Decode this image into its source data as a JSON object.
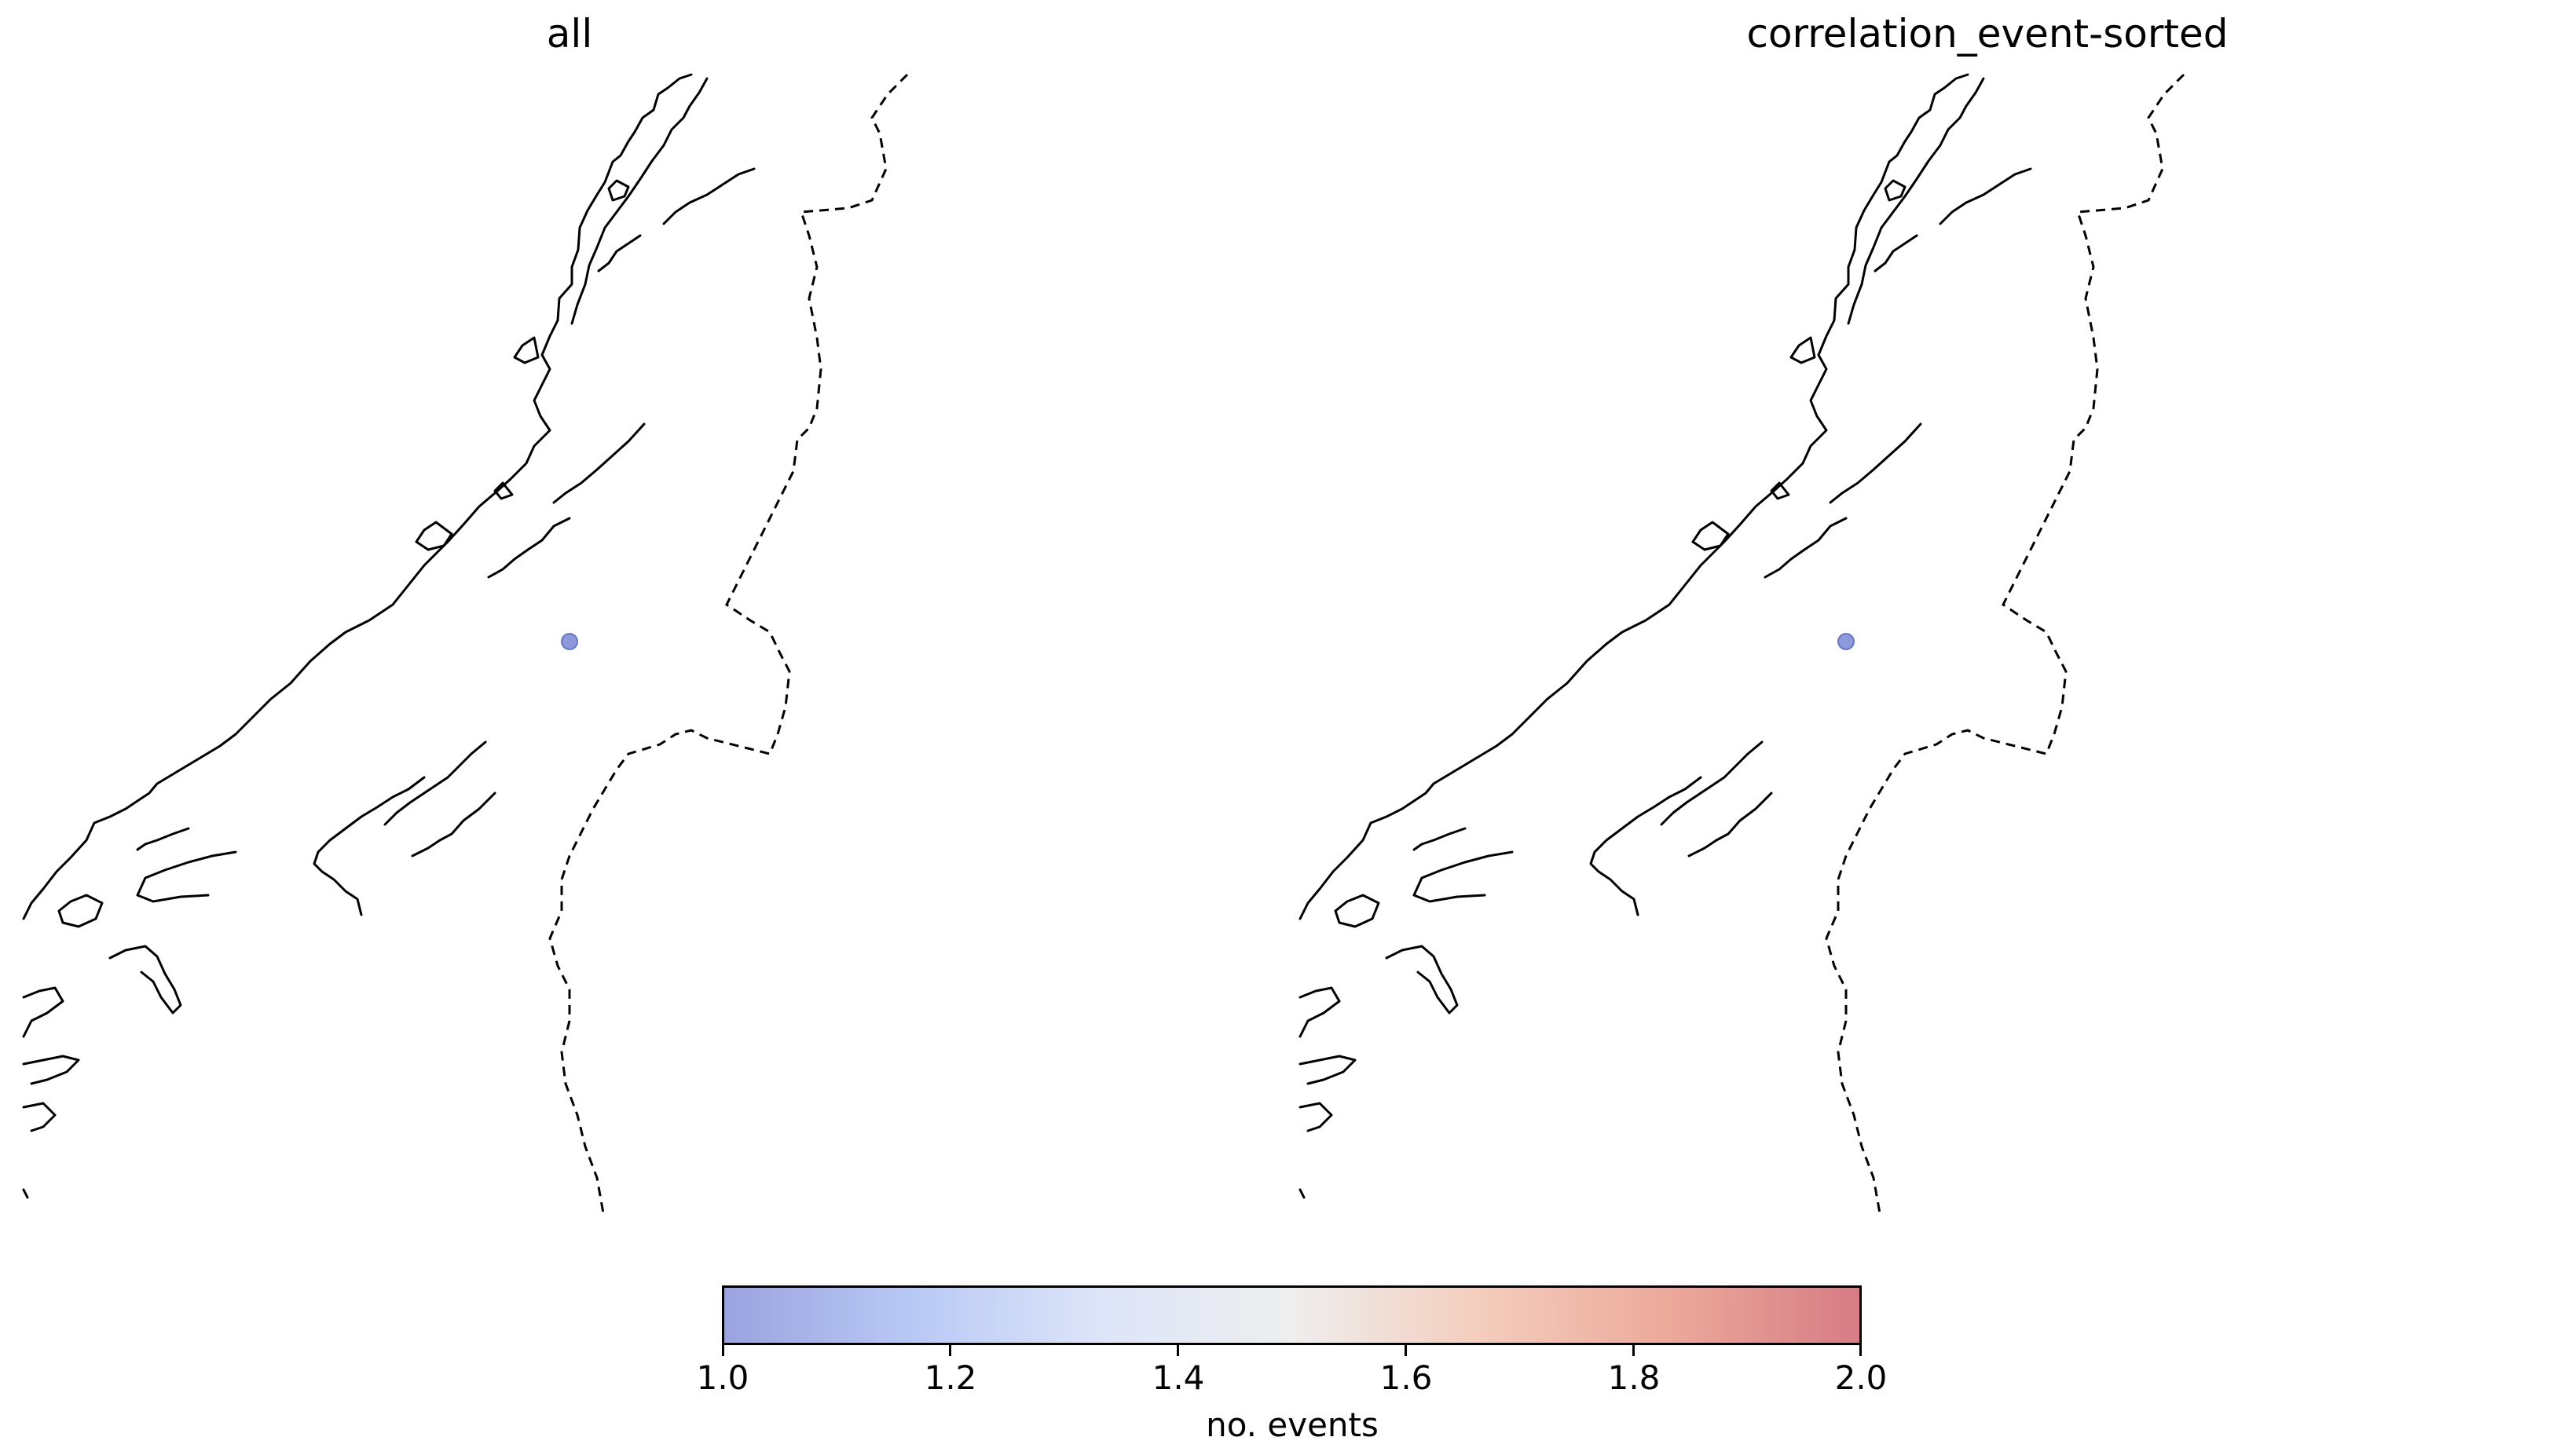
{
  "panels": [
    {
      "title": "all",
      "events": [
        {
          "label": "event",
          "count": 1
        }
      ]
    },
    {
      "title": "correlation_event-sorted",
      "events": [
        {
          "label": "event",
          "count": 1
        }
      ]
    }
  ],
  "colorbar": {
    "label": "no. events",
    "min": 1.0,
    "max": 2.0,
    "ticks": [
      "1.0",
      "1.2",
      "1.4",
      "1.6",
      "1.8",
      "2.0"
    ],
    "colormap": "coolwarm",
    "colors": [
      "#9aa3df",
      "#b9c9f5",
      "#dde5f8",
      "#eeeeee",
      "#f4cdbd",
      "#eca99a",
      "#d67c85"
    ]
  },
  "marker_color": "#7f8ed6"
}
